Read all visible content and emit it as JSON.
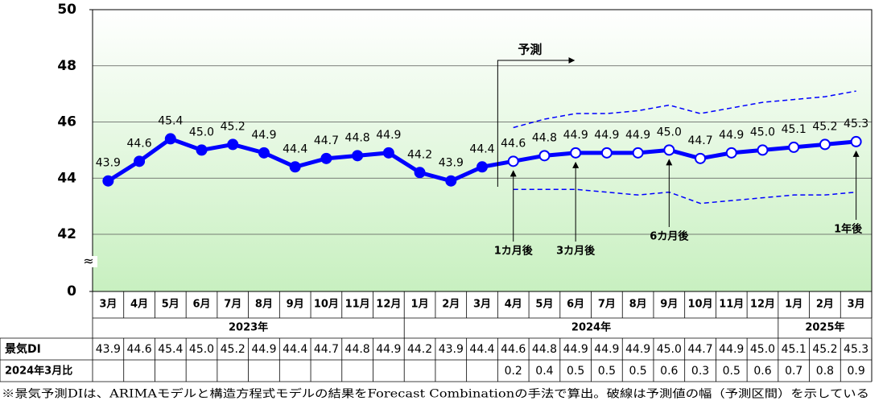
{
  "chart_data": {
    "type": "line",
    "categories": [
      "3月",
      "4月",
      "5月",
      "6月",
      "7月",
      "8月",
      "9月",
      "10月",
      "11月",
      "12月",
      "1月",
      "2月",
      "3月",
      "4月",
      "5月",
      "6月",
      "7月",
      "8月",
      "9月",
      "10月",
      "11月",
      "12月",
      "1月",
      "2月",
      "3月"
    ],
    "year_groups": [
      {
        "label": "2023年",
        "months": 10
      },
      {
        "label": "2024年",
        "months": 12
      },
      {
        "label": "2025年",
        "months": 3
      }
    ],
    "series": [
      {
        "name": "景気DI",
        "color": "#0000ff",
        "values": [
          43.9,
          44.6,
          45.4,
          45.0,
          45.2,
          44.9,
          44.4,
          44.7,
          44.8,
          44.9,
          44.2,
          43.9,
          44.4,
          44.6,
          44.8,
          44.9,
          44.9,
          44.9,
          45.0,
          44.7,
          44.9,
          45.0,
          45.1,
          45.2,
          45.3
        ],
        "value_labels": [
          "43.9",
          "44.6",
          "45.4",
          "45.0",
          "45.2",
          "44.9",
          "44.4",
          "44.7",
          "44.8",
          "44.9",
          "44.2",
          "43.9",
          "44.4",
          "44.6",
          "44.8",
          "44.9",
          "44.9",
          "44.9",
          "45.0",
          "44.7",
          "44.9",
          "45.0",
          "45.1",
          "45.2",
          "45.3"
        ]
      }
    ],
    "forecast_upper": [
      null,
      null,
      null,
      null,
      null,
      null,
      null,
      null,
      null,
      null,
      null,
      null,
      null,
      45.8,
      46.1,
      46.3,
      46.3,
      46.4,
      46.6,
      46.3,
      46.5,
      46.7,
      46.8,
      46.9,
      47.1
    ],
    "forecast_lower": [
      null,
      null,
      null,
      null,
      null,
      null,
      null,
      null,
      null,
      null,
      null,
      null,
      null,
      43.6,
      43.6,
      43.6,
      43.5,
      43.4,
      43.5,
      43.1,
      43.2,
      43.3,
      43.4,
      43.4,
      43.5
    ],
    "diff_row": {
      "name": "2024年3月比",
      "values": [
        null,
        null,
        null,
        null,
        null,
        null,
        null,
        null,
        null,
        null,
        null,
        null,
        null,
        0.2,
        0.4,
        0.5,
        0.5,
        0.5,
        0.6,
        0.3,
        0.5,
        0.6,
        0.7,
        0.8,
        0.9
      ]
    },
    "forecast_label": {
      "text": "予測",
      "index": 13
    },
    "annotations": [
      {
        "text": "1カ月後",
        "index": 13
      },
      {
        "text": "3カ月後",
        "index": 15
      },
      {
        "text": "6カ月後",
        "index": 18
      },
      {
        "text": "1年後",
        "index": 24
      }
    ],
    "ylim": [
      0,
      50
    ],
    "yticks": [
      0,
      42,
      44,
      46,
      48,
      50
    ],
    "y_break": [
      0,
      42
    ],
    "grid": true,
    "footnote": "※景気予測DIは、ARIMAモデルと構造方程式モデルの結果をForecast Combinationの手法で算出。破線は予測値の幅（予測区間）を示している"
  }
}
